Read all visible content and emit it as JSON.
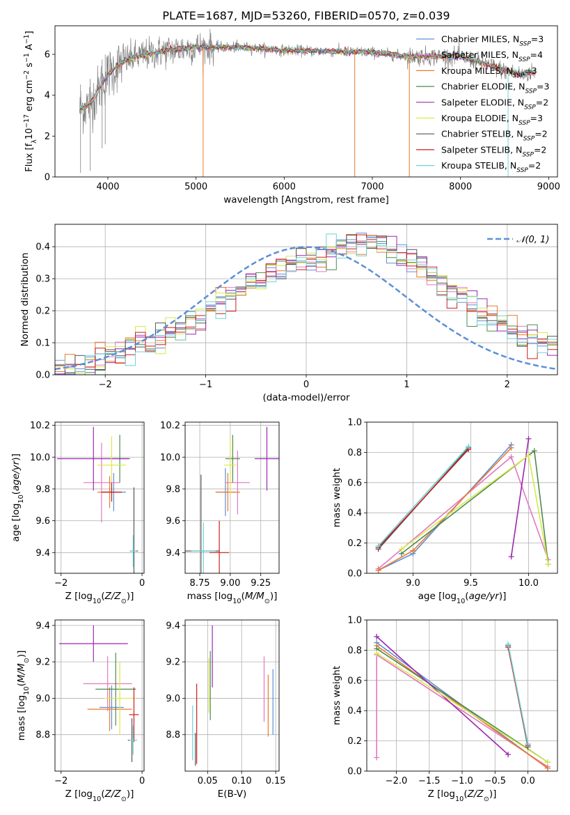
{
  "figure": {
    "title": "PLATE=1687, MJD=53260, FIBERID=0570, z=0.039"
  },
  "colors": {
    "Chabrier MILES": "#5b8fd6",
    "Salpeter MILES": "#e377c2",
    "Kroupa MILES": "#e8792e",
    "Chabrier ELODIE": "#4d8a4d",
    "Salpeter ELODIE": "#9b27af",
    "Kroupa ELODIE": "#d8e84a",
    "Chabrier STELIB": "#555555",
    "Salpeter STELIB": "#c81e1e",
    "Kroupa STELIB": "#6fd3d3",
    "spectrum": "#808080",
    "normal_curve": "#5b8fd6"
  },
  "chart_data": [
    {
      "id": "spectrum",
      "type": "line",
      "xlabel": "wavelength [Angstrom, rest frame]",
      "ylabel": "Flux [f_λ10^-17 erg cm^-2 s^-1 A^-1]",
      "xlim": [
        3400,
        9100
      ],
      "ylim": [
        0,
        7.4
      ],
      "xticks": [
        4000,
        5000,
        6000,
        7000,
        8000,
        9000
      ],
      "yticks": [
        0,
        2,
        4,
        6
      ],
      "legend_position": "top-right",
      "legend": [
        {
          "key": "Chabrier MILES",
          "base": "Chabrier MILES, N",
          "sub": "SSP",
          "tail": "=3"
        },
        {
          "key": "Salpeter MILES",
          "base": "Salpeter MILES, N",
          "sub": "SSP",
          "tail": "=4"
        },
        {
          "key": "Kroupa MILES",
          "base": "Kroupa MILES, N",
          "sub": "SSP",
          "tail": "=3"
        },
        {
          "key": "Chabrier ELODIE",
          "base": "Chabrier ELODIE, N",
          "sub": "SSP",
          "tail": "=3"
        },
        {
          "key": "Salpeter ELODIE",
          "base": "Salpeter ELODIE, N",
          "sub": "SSP",
          "tail": "=2"
        },
        {
          "key": "Kroupa ELODIE",
          "base": "Kroupa ELODIE, N",
          "sub": "SSP",
          "tail": "=3"
        },
        {
          "key": "Chabrier STELIB",
          "base": "Chabrier STELIB, N",
          "sub": "SSP",
          "tail": "=2"
        },
        {
          "key": "Salpeter STELIB",
          "base": "Salpeter STELIB, N",
          "sub": "SSP",
          "tail": "=2"
        },
        {
          "key": "Kroupa STELIB",
          "base": "Kroupa STELIB, N",
          "sub": "SSP",
          "tail": "=2"
        }
      ],
      "continuum": [
        [
          3680,
          3.3
        ],
        [
          3800,
          3.6
        ],
        [
          3900,
          4.3
        ],
        [
          4000,
          5.0
        ],
        [
          4100,
          5.4
        ],
        [
          4200,
          5.7
        ],
        [
          4300,
          5.85
        ],
        [
          4500,
          6.05
        ],
        [
          4700,
          6.2
        ],
        [
          5000,
          6.35
        ],
        [
          5500,
          6.35
        ],
        [
          6000,
          6.2
        ],
        [
          6500,
          6.15
        ],
        [
          7000,
          6.1
        ],
        [
          7400,
          5.9
        ],
        [
          7600,
          5.9
        ],
        [
          8000,
          5.9
        ],
        [
          8300,
          5.5
        ],
        [
          8500,
          5.2
        ],
        [
          8700,
          5.0
        ],
        [
          8800,
          5.1
        ]
      ],
      "model_wavelength_range": [
        3680,
        8840
      ],
      "spectrum_wavelength_range": [
        3680,
        8850
      ]
    },
    {
      "id": "residuals",
      "type": "line",
      "xlabel": "(data-model)/error",
      "ylabel": "Normed distribution",
      "xlim": [
        -2.5,
        2.5
      ],
      "ylim": [
        0,
        0.47
      ],
      "xticks": [
        -2,
        -1,
        0,
        1,
        2
      ],
      "yticks": [
        0.0,
        0.1,
        0.2,
        0.3,
        0.4
      ],
      "grid": true,
      "legend_label": "𝒩(0, 1)",
      "legend_position": "top-right",
      "hist_edges_start": -2.5,
      "hist_bin_width": 0.1,
      "hist_base": [
        0.02,
        0.025,
        0.03,
        0.035,
        0.045,
        0.055,
        0.07,
        0.085,
        0.1,
        0.105,
        0.11,
        0.13,
        0.15,
        0.165,
        0.18,
        0.2,
        0.22,
        0.25,
        0.27,
        0.29,
        0.3,
        0.32,
        0.34,
        0.355,
        0.36,
        0.37,
        0.375,
        0.38,
        0.39,
        0.4,
        0.41,
        0.42,
        0.41,
        0.39,
        0.37,
        0.35,
        0.33,
        0.31,
        0.28,
        0.26,
        0.24,
        0.22,
        0.2,
        0.18,
        0.16,
        0.14,
        0.125,
        0.11,
        0.1,
        0.09
      ]
    },
    {
      "id": "age_vs_Z",
      "type": "scatter",
      "xlabel": "Z [log10(Z/Z⊙)]",
      "ylabel": "age [log10(age/yr)]",
      "xlim": [
        -2.15,
        0.05
      ],
      "ylim": [
        9.27,
        10.22
      ],
      "xticks": [
        -2,
        0
      ],
      "yticks": [
        9.4,
        9.6,
        9.8,
        10.0,
        10.2
      ],
      "grid": true,
      "points": [
        {
          "series": "Chabrier MILES",
          "x": -0.7,
          "y": 9.78,
          "xerr": 0.3,
          "yerr": 0.12
        },
        {
          "series": "Salpeter MILES",
          "x": -1.0,
          "y": 9.84,
          "xerr": 0.45,
          "yerr": 0.25
        },
        {
          "series": "Kroupa MILES",
          "x": -0.8,
          "y": 9.78,
          "xerr": 0.3,
          "yerr": 0.1
        },
        {
          "series": "Chabrier ELODIE",
          "x": -0.55,
          "y": 9.99,
          "xerr": 0.2,
          "yerr": 0.15
        },
        {
          "series": "Salpeter ELODIE",
          "x": -1.2,
          "y": 9.99,
          "xerr": 0.9,
          "yerr": 0.2
        },
        {
          "series": "Kroupa ELODIE",
          "x": -0.75,
          "y": 9.95,
          "xerr": 0.35,
          "yerr": 0.18
        },
        {
          "series": "Chabrier STELIB",
          "x": -0.2,
          "y": 9.41,
          "xerr": 0.1,
          "yerr": 0.4
        },
        {
          "series": "Salpeter STELIB",
          "x": -0.75,
          "y": 9.78,
          "xerr": 0.25,
          "yerr": 0.06
        },
        {
          "series": "Kroupa STELIB",
          "x": -0.22,
          "y": 9.41,
          "xerr": 0.08,
          "yerr": 0.1
        }
      ]
    },
    {
      "id": "age_vs_mass",
      "type": "scatter",
      "xlabel": "mass [log10(M/M⊙)]",
      "ylabel": "",
      "xlim": [
        8.63,
        9.4
      ],
      "ylim": [
        9.27,
        10.22
      ],
      "xticks": [
        8.75,
        9.0,
        9.25
      ],
      "yticks": [
        9.4,
        9.6,
        9.8,
        10.0,
        10.2
      ],
      "grid": true,
      "points": [
        {
          "series": "Chabrier MILES",
          "x": 8.96,
          "y": 9.78,
          "xerr": 0.08,
          "yerr": 0.15
        },
        {
          "series": "Salpeter MILES",
          "x": 9.06,
          "y": 9.84,
          "xerr": 0.1,
          "yerr": 0.2
        },
        {
          "series": "Kroupa MILES",
          "x": 8.98,
          "y": 9.78,
          "xerr": 0.1,
          "yerr": 0.12
        },
        {
          "series": "Chabrier ELODIE",
          "x": 9.02,
          "y": 9.99,
          "xerr": 0.06,
          "yerr": 0.15
        },
        {
          "series": "Salpeter ELODIE",
          "x": 9.3,
          "y": 9.99,
          "xerr": 0.1,
          "yerr": 0.2
        },
        {
          "series": "Kroupa ELODIE",
          "x": 9.0,
          "y": 9.95,
          "xerr": 0.05,
          "yerr": 0.18
        },
        {
          "series": "Chabrier STELIB",
          "x": 8.76,
          "y": 9.41,
          "xerr": 0.15,
          "yerr": 0.48
        },
        {
          "series": "Salpeter STELIB",
          "x": 8.91,
          "y": 9.4,
          "xerr": 0.08,
          "yerr": 0.2
        },
        {
          "series": "Kroupa STELIB",
          "x": 8.78,
          "y": 9.41,
          "xerr": 0.1,
          "yerr": 0.18
        }
      ]
    },
    {
      "id": "mass_weight_vs_age",
      "type": "line",
      "xlabel": "age [log10(age/yr)]",
      "ylabel": "mass weight",
      "xlim": [
        8.6,
        10.25
      ],
      "ylim": [
        0,
        1.0
      ],
      "xticks": [
        9.0,
        9.5,
        10.0
      ],
      "yticks": [
        0.0,
        0.2,
        0.4,
        0.6,
        0.8,
        1.0
      ],
      "grid": true,
      "series": [
        {
          "name": "Chabrier MILES",
          "x": [
            8.7,
            9.0,
            9.85
          ],
          "y": [
            0.02,
            0.13,
            0.85
          ]
        },
        {
          "name": "Salpeter MILES",
          "x": [
            8.7,
            9.85,
            10.17
          ],
          "y": [
            0.03,
            0.77,
            0.09
          ]
        },
        {
          "name": "Kroupa MILES",
          "x": [
            8.7,
            9.0,
            9.85
          ],
          "y": [
            0.02,
            0.15,
            0.83
          ]
        },
        {
          "name": "Chabrier ELODIE",
          "x": [
            8.9,
            10.05,
            10.17
          ],
          "y": [
            0.13,
            0.81,
            0.06
          ]
        },
        {
          "name": "Salpeter ELODIE",
          "x": [
            9.85,
            10.0
          ],
          "y": [
            0.11,
            0.89
          ]
        },
        {
          "name": "Kroupa ELODIE",
          "x": [
            8.9,
            10.0,
            10.17
          ],
          "y": [
            0.16,
            0.78,
            0.06
          ]
        },
        {
          "name": "Chabrier STELIB",
          "x": [
            8.7,
            9.48
          ],
          "y": [
            0.16,
            0.83
          ]
        },
        {
          "name": "Salpeter STELIB",
          "x": [
            8.7,
            9.48
          ],
          "y": [
            0.17,
            0.82
          ]
        },
        {
          "name": "Kroupa STELIB",
          "x": [
            8.7,
            9.48
          ],
          "y": [
            0.18,
            0.84
          ]
        }
      ]
    },
    {
      "id": "mass_vs_Z",
      "type": "scatter",
      "xlabel": "Z [log10(Z/Z⊙)]",
      "ylabel": "mass [log10(M/M⊙)]",
      "xlim": [
        -2.15,
        0.05
      ],
      "ylim": [
        8.6,
        9.43
      ],
      "xticks": [
        -2,
        0
      ],
      "yticks": [
        8.8,
        9.0,
        9.2,
        9.4
      ],
      "grid": true,
      "points": [
        {
          "series": "Chabrier MILES",
          "x": -0.75,
          "y": 8.95,
          "xerr": 0.3,
          "yerr": 0.12
        },
        {
          "series": "Salpeter MILES",
          "x": -0.85,
          "y": 9.08,
          "xerr": 0.6,
          "yerr": 0.15
        },
        {
          "series": "Kroupa MILES",
          "x": -0.8,
          "y": 8.94,
          "xerr": 0.55,
          "yerr": 0.12
        },
        {
          "series": "Chabrier ELODIE",
          "x": -0.65,
          "y": 9.05,
          "xerr": 0.5,
          "yerr": 0.2
        },
        {
          "series": "Salpeter ELODIE",
          "x": -1.2,
          "y": 9.3,
          "xerr": 0.85,
          "yerr": 0.1
        },
        {
          "series": "Kroupa ELODIE",
          "x": -0.55,
          "y": 9.0,
          "xerr": 0.4,
          "yerr": 0.2
        },
        {
          "series": "Chabrier STELIB",
          "x": -0.25,
          "y": 8.77,
          "xerr": 0.1,
          "yerr": 0.12
        },
        {
          "series": "Salpeter STELIB",
          "x": -0.2,
          "y": 8.91,
          "xerr": 0.12,
          "yerr": 0.15
        },
        {
          "series": "Kroupa STELIB",
          "x": -0.22,
          "y": 8.77,
          "xerr": 0.1,
          "yerr": 0.08
        }
      ]
    },
    {
      "id": "mass_vs_ebv",
      "type": "scatter",
      "xlabel": "E(B-V)",
      "ylabel": "",
      "xlim": [
        0.017,
        0.155
      ],
      "ylim": [
        8.6,
        9.43
      ],
      "xticks": [
        0.05,
        0.1,
        0.15
      ],
      "yticks": [
        8.8,
        9.0,
        9.2,
        9.4
      ],
      "grid": true,
      "points": [
        {
          "series": "Chabrier MILES",
          "x": 0.146,
          "y": 8.98,
          "yerr": 0.18
        },
        {
          "series": "Salpeter MILES",
          "x": 0.133,
          "y": 9.05,
          "yerr": 0.18
        },
        {
          "series": "Kroupa MILES",
          "x": 0.139,
          "y": 8.96,
          "yerr": 0.17
        },
        {
          "series": "Chabrier ELODIE",
          "x": 0.054,
          "y": 9.07,
          "yerr": 0.19
        },
        {
          "series": "Salpeter ELODIE",
          "x": 0.057,
          "y": 9.23,
          "yerr": 0.17
        },
        {
          "series": "Kroupa ELODIE",
          "x": 0.052,
          "y": 9.07,
          "yerr": 0.15
        },
        {
          "series": "Chabrier STELIB",
          "x": 0.032,
          "y": 8.72,
          "yerr": 0.09
        },
        {
          "series": "Salpeter STELIB",
          "x": 0.034,
          "y": 8.86,
          "yerr": 0.22
        },
        {
          "series": "Kroupa STELIB",
          "x": 0.028,
          "y": 8.81,
          "yerr": 0.15
        }
      ]
    },
    {
      "id": "mass_weight_vs_Z",
      "type": "line",
      "xlabel": "Z [log10(Z/Z⊙)]",
      "ylabel": "mass weight",
      "xlim": [
        -2.45,
        0.45
      ],
      "ylim": [
        0,
        1.0
      ],
      "xticks": [
        -2.0,
        -1.5,
        -1.0,
        -0.5,
        0.0
      ],
      "yticks": [
        0.0,
        0.2,
        0.4,
        0.6,
        0.8,
        1.0
      ],
      "grid": true,
      "series": [
        {
          "name": "Chabrier MILES",
          "x": [
            -2.3,
            0.3
          ],
          "y": [
            0.85,
            0.02
          ]
        },
        {
          "name": "Salpeter MILES",
          "x": [
            -2.3,
            -2.3,
            0.3
          ],
          "y": [
            0.09,
            0.77,
            0.03
          ]
        },
        {
          "name": "Kroupa MILES",
          "x": [
            -2.3,
            0.3
          ],
          "y": [
            0.83,
            0.02
          ]
        },
        {
          "name": "Chabrier ELODIE",
          "x": [
            -2.3,
            0.3
          ],
          "y": [
            0.81,
            0.06
          ]
        },
        {
          "name": "Salpeter ELODIE",
          "x": [
            -2.3,
            -0.3
          ],
          "y": [
            0.89,
            0.11
          ]
        },
        {
          "name": "Kroupa ELODIE",
          "x": [
            -2.3,
            0.3
          ],
          "y": [
            0.78,
            0.06
          ]
        },
        {
          "name": "Chabrier STELIB",
          "x": [
            -0.3,
            0.0
          ],
          "y": [
            0.83,
            0.16
          ]
        },
        {
          "name": "Salpeter STELIB",
          "x": [
            -0.3,
            0.0
          ],
          "y": [
            0.82,
            0.17
          ]
        },
        {
          "name": "Kroupa STELIB",
          "x": [
            -0.3,
            0.0
          ],
          "y": [
            0.84,
            0.18
          ]
        }
      ]
    }
  ]
}
